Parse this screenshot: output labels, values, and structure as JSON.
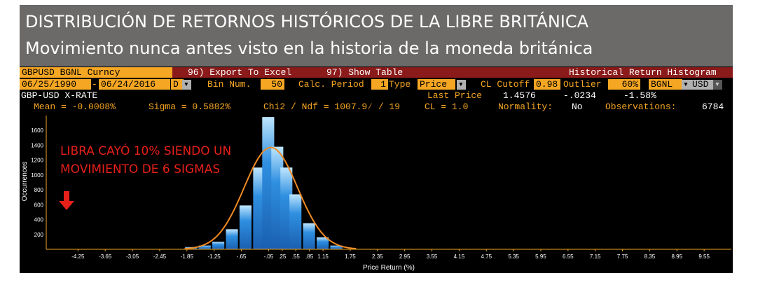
{
  "banner": {
    "title": "DISTRIBUCIÓN DE RETORNOS HISTÓRICOS DE LA LIBRE BRITÁNICA",
    "subtitle": "Movimiento nunca antes visto en la historia de la moneda británica"
  },
  "toolbar": {
    "ticker": "GBPUSD BGNL Curncy",
    "export_label": "96) Export To Excel",
    "show_table_label": "97) Show Table",
    "panel_title": "Historical Return Histogram"
  },
  "params": {
    "start_date": "06/25/1990",
    "end_date": "06/24/2016",
    "dash": "-",
    "period_code": "D",
    "bin_label": "Bin Num.",
    "bin_value": "50",
    "calc_label": "Calc. Period",
    "calc_value": "1",
    "type_label": "Type",
    "type_value": "Price",
    "cutoff_label": "CL Cutoff",
    "cutoff_value": "0.98",
    "outlier_label": "Outlier",
    "outlier_value": "60%",
    "source_value": "BGNL",
    "currency_value": "USD"
  },
  "info": {
    "security_name": "GBP-USD X-RATE",
    "last_price_label": "Last Price",
    "last_price": "1.4576",
    "change": "-.0234",
    "change_pct": "-1.58%"
  },
  "stats": {
    "mean": "Mean = -0.0008%",
    "sigma": "Sigma = 0.5882%",
    "chi2": "Chi2 / Ndf = 1007.9⁄ / 19",
    "cl": "CL = 1.0",
    "normality_label": "Normality:",
    "normality_value": "No",
    "obs_label": "Observations:",
    "obs_value": "6784"
  },
  "annotation": {
    "line1": "LIBRA CAYÓ 10% SIENDO UN",
    "line2": "MOVIMIENTO DE 6 SIGMAS"
  },
  "colors": {
    "bar": "#2f8fe0",
    "curve": "#f08a24",
    "arrow": "#e8201a",
    "axis": "#f5a623"
  },
  "chart_data": {
    "type": "bar",
    "title": "",
    "xlabel": "Price Return (%)",
    "ylabel": "Occurrences",
    "ylim": [
      0,
      1800
    ],
    "xlim": [
      -4.95,
      10.15
    ],
    "y_ticks": [
      200,
      400,
      600,
      800,
      1000,
      1200,
      1400,
      1600
    ],
    "x_ticks": [
      "-4.25",
      "-3.65",
      "-3.05",
      "-2.45",
      "-1.85",
      "-1.25",
      "-.65",
      "-.05",
      ".25",
      ".55",
      ".85",
      "1.15",
      "1.75",
      "2.35",
      "2.95",
      "3.55",
      "4.15",
      "4.75",
      "5.35",
      "5.95",
      "6.55",
      "7.15",
      "7.75",
      "8.35",
      "8.95",
      "9.55"
    ],
    "x_tick_values": [
      -4.25,
      -3.65,
      -3.05,
      -2.45,
      -1.85,
      -1.25,
      -0.65,
      -0.05,
      0.25,
      0.55,
      0.85,
      1.15,
      1.75,
      2.35,
      2.95,
      3.55,
      4.15,
      4.75,
      5.35,
      5.95,
      6.55,
      7.15,
      7.75,
      8.35,
      8.95,
      9.55
    ],
    "bins": [
      {
        "center": -1.75,
        "value": 30
      },
      {
        "center": -1.45,
        "value": 50
      },
      {
        "center": -1.15,
        "value": 100
      },
      {
        "center": -0.85,
        "value": 270
      },
      {
        "center": -0.55,
        "value": 590
      },
      {
        "center": -0.25,
        "value": 1100
      },
      {
        "center": -0.05,
        "value": 1780
      },
      {
        "center": 0.15,
        "value": 1380
      },
      {
        "center": 0.35,
        "value": 1100
      },
      {
        "center": 0.55,
        "value": 740
      },
      {
        "center": 0.85,
        "value": 350
      },
      {
        "center": 1.15,
        "value": 160
      },
      {
        "center": 1.45,
        "value": 50
      }
    ],
    "bin_width": 0.28,
    "fit": {
      "type": "normal",
      "mean": 0.0,
      "sigma": 0.5882,
      "peak": 1370
    }
  }
}
